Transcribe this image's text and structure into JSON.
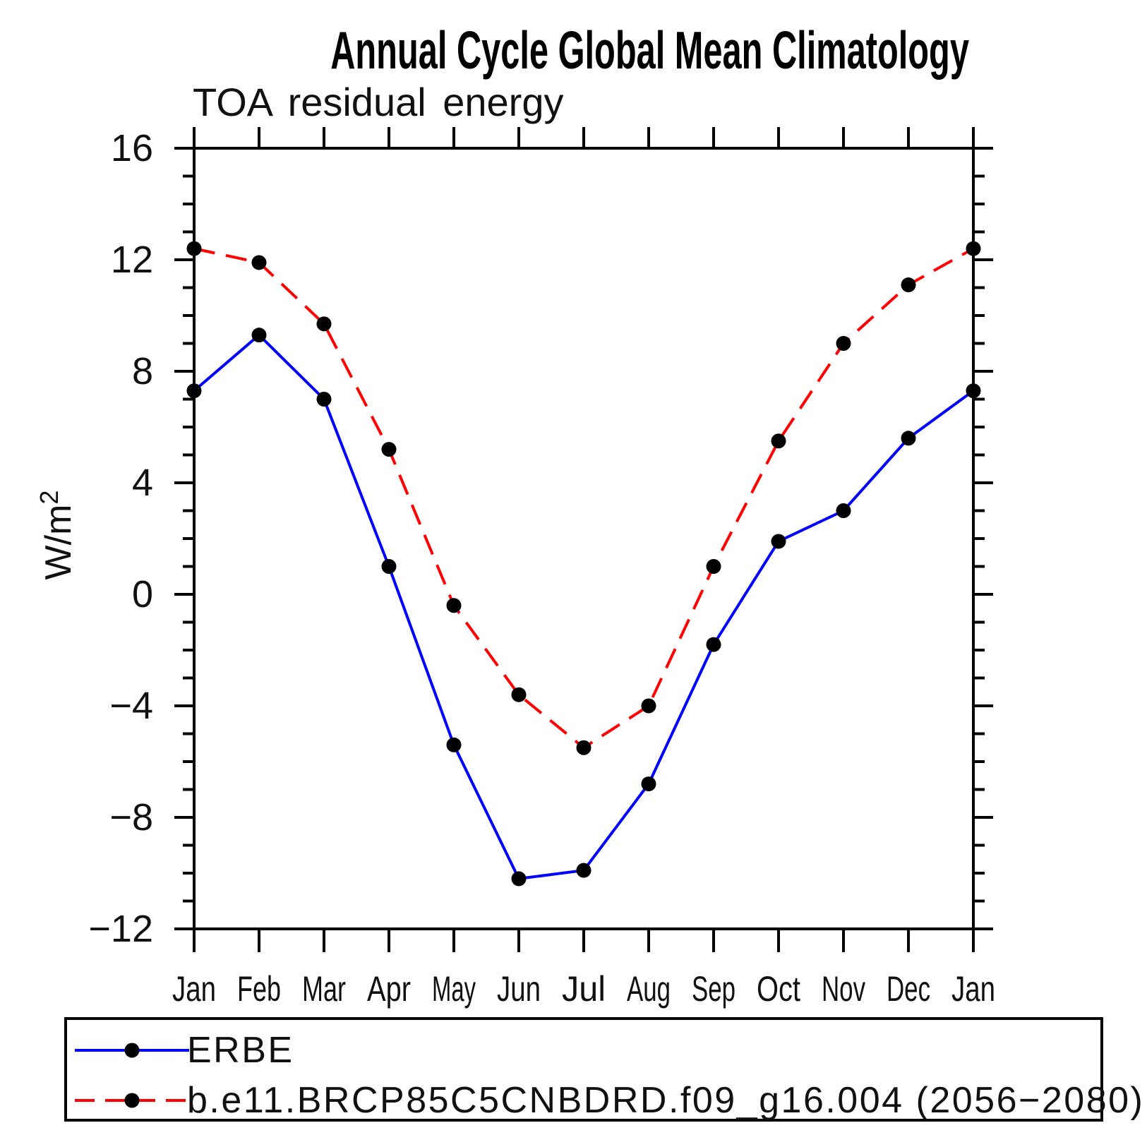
{
  "page": {
    "background": "#ffffff"
  },
  "chart_data": {
    "type": "line",
    "title": "Annual Cycle Global Mean Climatology",
    "subtitle": "TOA residual energy",
    "ylabel": "W/m²",
    "ylabel_base": "W/m",
    "ylabel_sup": "2",
    "categories": [
      "Jan",
      "Feb",
      "Mar",
      "Apr",
      "May",
      "Jun",
      "Jul",
      "Aug",
      "Sep",
      "Oct",
      "Nov",
      "Dec",
      "Jan"
    ],
    "ylim": [
      -12,
      16
    ],
    "ytick_major": [
      16,
      12,
      8,
      4,
      0,
      -4,
      -8,
      -12
    ],
    "ytick_minor_step": 1,
    "grid": false,
    "legend_position": "bottom",
    "axis_color": "#000000",
    "marker_radius": 10.5,
    "series": [
      {
        "name": "ERBE",
        "color": "#0000ff",
        "style": "solid",
        "marker": "circle",
        "marker_color": "#000000",
        "values": [
          7.3,
          9.3,
          7.0,
          1.0,
          -5.4,
          -10.2,
          -9.9,
          -6.8,
          -1.8,
          1.9,
          3.0,
          5.6,
          7.3
        ]
      },
      {
        "name": "b.e11.BRCP85C5CNBDRD.f09_g16.004 (2056−2080)",
        "color": "#ff0000",
        "style": "dashed",
        "marker": "circle",
        "marker_color": "#000000",
        "values": [
          12.4,
          11.9,
          9.7,
          5.2,
          -0.4,
          -3.6,
          -5.5,
          -4.0,
          1.0,
          5.5,
          9.0,
          11.1,
          12.4
        ]
      }
    ]
  }
}
